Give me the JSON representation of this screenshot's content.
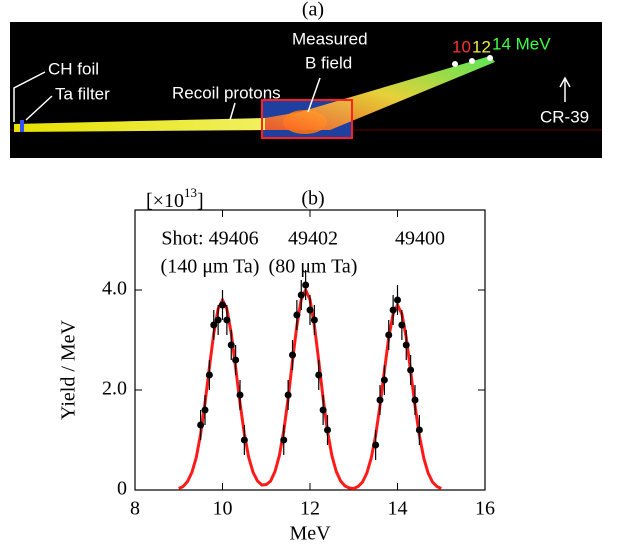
{
  "panel_a": {
    "title": "(a)",
    "ch_foil": "CH foil",
    "ta_filter": "Ta filter",
    "recoil": "Recoil protons",
    "measured": "Measured",
    "bfield": "B field",
    "e10": "10",
    "e12": "12",
    "e14": "14 MeV",
    "cr39": "CR-39"
  },
  "chart_data": {
    "type": "line",
    "title": "(b)",
    "xlabel": "MeV",
    "ylabel": "Yield / MeV",
    "y_multiplier": {
      "text": "[×10",
      "exponent": "13",
      "close": "]"
    },
    "annotations": [
      "Shot: 49406",
      "49402",
      "49400",
      "(140 μm Ta)",
      "(80 μm Ta)"
    ],
    "xlim": [
      8,
      16
    ],
    "xticks": [
      8,
      10,
      12,
      14,
      16
    ],
    "ylim": [
      0,
      5.6
    ],
    "yticks": [
      0,
      {
        "value": 2,
        "label": "2.0"
      },
      {
        "value": 4,
        "label": "4.0"
      }
    ],
    "series": [
      {
        "type": "line",
        "color": "#ff1a1a",
        "x": [
          9.0,
          9.1,
          9.2,
          9.3,
          9.4,
          9.5,
          9.6,
          9.7,
          9.8,
          9.9,
          10.0,
          10.1,
          10.2,
          10.3,
          10.4,
          10.5,
          10.6,
          10.7,
          10.8,
          10.9,
          11.0,
          11.1,
          11.2,
          11.3,
          11.4,
          11.5,
          11.6,
          11.7,
          11.8,
          11.9,
          12.0,
          12.1,
          12.2,
          12.3,
          12.4,
          12.5,
          12.6,
          12.7,
          12.8,
          12.9,
          13.0,
          13.1,
          13.2,
          13.3,
          13.4,
          13.5,
          13.6,
          13.7,
          13.8,
          13.9,
          14.0,
          14.1,
          14.2,
          14.3,
          14.4,
          14.5,
          14.6,
          14.7,
          14.8,
          14.9,
          15.0
        ],
        "values": [
          0.03,
          0.07,
          0.17,
          0.35,
          0.65,
          1.12,
          1.74,
          2.45,
          3.13,
          3.62,
          3.8,
          3.62,
          3.13,
          2.45,
          1.74,
          1.12,
          0.65,
          0.35,
          0.18,
          0.1,
          0.11,
          0.18,
          0.37,
          0.69,
          1.18,
          1.83,
          2.58,
          3.29,
          3.81,
          4.0,
          3.81,
          3.29,
          2.58,
          1.83,
          1.18,
          0.69,
          0.37,
          0.18,
          0.08,
          0.04,
          0.03,
          0.07,
          0.16,
          0.34,
          0.64,
          1.09,
          1.69,
          2.38,
          3.05,
          3.52,
          3.7,
          3.52,
          3.05,
          2.38,
          1.69,
          1.09,
          0.64,
          0.34,
          0.16,
          0.07,
          0.03
        ]
      },
      {
        "type": "scatter",
        "color": "#000000",
        "x": [
          9.5,
          9.6,
          9.7,
          9.8,
          9.9,
          10.0,
          10.1,
          10.2,
          10.3,
          10.4,
          10.5,
          11.4,
          11.5,
          11.6,
          11.7,
          11.8,
          11.9,
          12.0,
          12.1,
          12.2,
          12.3,
          12.4,
          13.5,
          13.6,
          13.7,
          13.8,
          13.9,
          14.0,
          14.1,
          14.2,
          14.3,
          14.4,
          14.5
        ],
        "values": [
          1.3,
          1.6,
          2.3,
          3.3,
          3.4,
          3.7,
          3.4,
          2.9,
          2.6,
          1.9,
          1.0,
          1.0,
          1.9,
          2.7,
          3.5,
          3.9,
          4.1,
          3.6,
          3.4,
          2.3,
          1.6,
          1.2,
          0.9,
          1.8,
          2.2,
          3.1,
          3.6,
          3.8,
          3.3,
          2.9,
          2.4,
          1.8,
          1.2
        ],
        "errors": [
          0.3,
          0.3,
          0.3,
          0.3,
          0.3,
          0.3,
          0.3,
          0.3,
          0.3,
          0.3,
          0.3,
          0.3,
          0.3,
          0.3,
          0.3,
          0.3,
          0.3,
          0.3,
          0.3,
          0.3,
          0.3,
          0.3,
          0.3,
          0.3,
          0.3,
          0.3,
          0.3,
          0.3,
          0.3,
          0.3,
          0.3,
          0.3,
          0.3
        ]
      }
    ]
  }
}
